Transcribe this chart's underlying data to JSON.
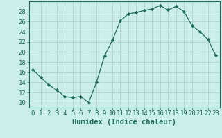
{
  "x": [
    0,
    1,
    2,
    3,
    4,
    5,
    6,
    7,
    8,
    9,
    10,
    11,
    12,
    13,
    14,
    15,
    16,
    17,
    18,
    19,
    20,
    21,
    22,
    23
  ],
  "y": [
    16.5,
    15.0,
    13.5,
    12.5,
    11.2,
    11.0,
    11.2,
    10.0,
    14.0,
    19.2,
    22.3,
    26.2,
    27.5,
    27.8,
    28.2,
    28.5,
    29.2,
    28.3,
    29.0,
    28.0,
    25.2,
    24.0,
    22.5,
    19.3
  ],
  "line_color": "#1a6b5a",
  "marker": "D",
  "marker_size": 2.2,
  "bg_color": "#cceee8",
  "grid_color": "#aaccc6",
  "xlabel": "Humidex (Indice chaleur)",
  "xlim": [
    -0.5,
    23.5
  ],
  "ylim": [
    9,
    30
  ],
  "yticks": [
    10,
    12,
    14,
    16,
    18,
    20,
    22,
    24,
    26,
    28
  ],
  "xticks": [
    0,
    1,
    2,
    3,
    4,
    5,
    6,
    7,
    8,
    9,
    10,
    11,
    12,
    13,
    14,
    15,
    16,
    17,
    18,
    19,
    20,
    21,
    22,
    23
  ],
  "tick_color": "#1a6b5a",
  "label_color": "#1a6b5a",
  "axis_color": "#1a6b5a",
  "font_size": 6.5,
  "xlabel_fontsize": 7.5
}
